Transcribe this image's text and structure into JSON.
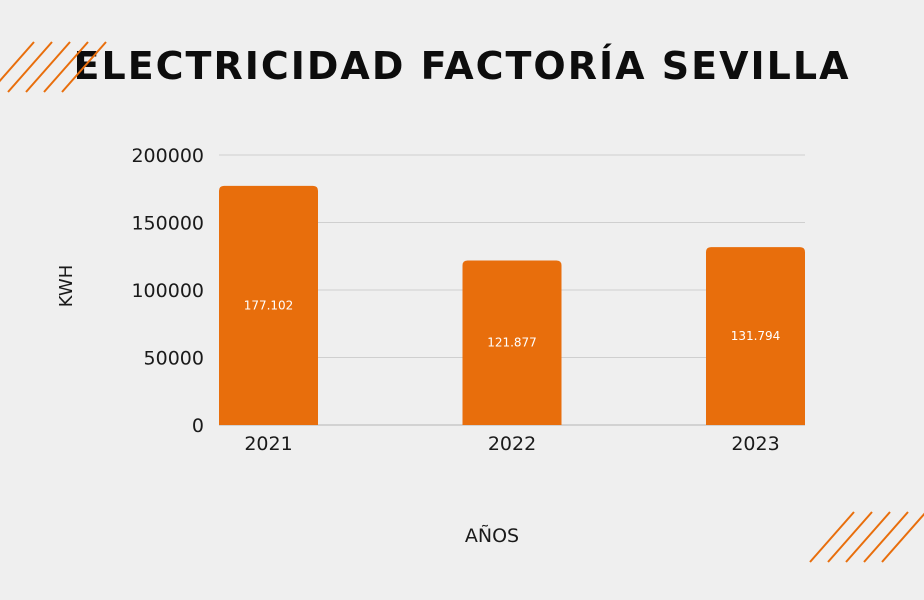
{
  "title": "ELECTRICIDAD FACTORÍA SEVILLA",
  "colors": {
    "background": "#efefef",
    "bar": "#e86e0c",
    "accent_stripes": "#e86e0c",
    "grid": "#cfcfcf",
    "text": "#1a1a1a",
    "bar_label": "#ffffff"
  },
  "chart_data": {
    "type": "bar",
    "title": "ELECTRICIDAD FACTORÍA SEVILLA",
    "xlabel": "AÑOS",
    "ylabel": "KWH",
    "categories": [
      "2021",
      "2022",
      "2023"
    ],
    "values": [
      177102,
      121877,
      131794
    ],
    "data_labels": [
      "177.102",
      "121.877",
      "131.794"
    ],
    "ylim": [
      0,
      200000
    ],
    "yticks": [
      0,
      50000,
      100000,
      150000,
      200000
    ],
    "ytick_labels": [
      "0",
      "50000",
      "100000",
      "150000",
      "200000"
    ],
    "grid": true,
    "legend": "none"
  }
}
